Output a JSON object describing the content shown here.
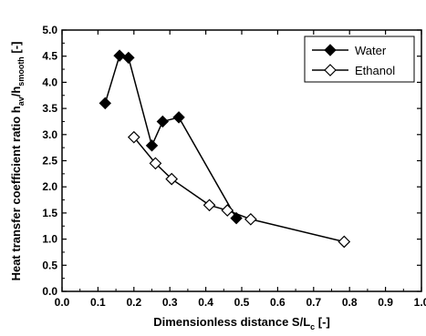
{
  "chart_data": {
    "type": "line",
    "xlabel": "Dimensionless distance S/L",
    "xlabel_sub": "c",
    "xlabel_tail": " [-]",
    "ylabel": "Heat transfer coefficient ratio h",
    "ylabel_sub1": "av",
    "ylabel_mid": "/h",
    "ylabel_sub2": "smooth",
    "ylabel_tail": " [-]",
    "xlim": [
      0.0,
      1.0
    ],
    "ylim": [
      0.0,
      5.0
    ],
    "x_ticks": [
      "0.0",
      "0.1",
      "0.2",
      "0.3",
      "0.4",
      "0.5",
      "0.6",
      "0.7",
      "0.8",
      "0.9",
      "1.0"
    ],
    "y_ticks": [
      "0.0",
      "0.5",
      "1.0",
      "1.5",
      "2.0",
      "2.5",
      "3.0",
      "3.5",
      "4.0",
      "4.5",
      "5.0"
    ],
    "legend_position": "top-right",
    "series": [
      {
        "name": "Water",
        "marker": "filled-diamond",
        "x": [
          0.12,
          0.16,
          0.185,
          0.25,
          0.28,
          0.325,
          0.485
        ],
        "y": [
          3.6,
          4.51,
          4.47,
          2.79,
          3.25,
          3.33,
          1.4
        ]
      },
      {
        "name": "Ethanol",
        "marker": "open-diamond",
        "x": [
          0.2,
          0.26,
          0.305,
          0.41,
          0.46,
          0.525,
          0.785
        ],
        "y": [
          2.95,
          2.45,
          2.15,
          1.65,
          1.55,
          1.38,
          0.95
        ]
      }
    ]
  }
}
